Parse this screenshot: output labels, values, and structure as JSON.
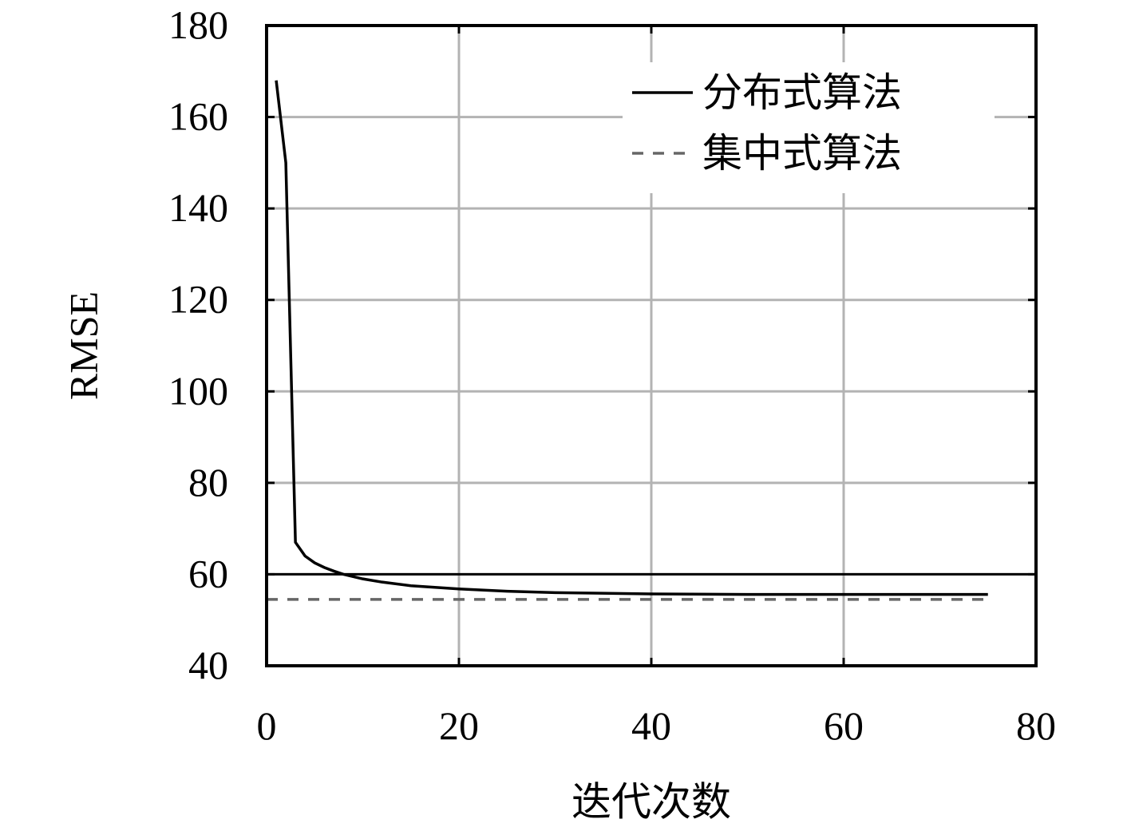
{
  "chart_data": {
    "type": "line",
    "xlabel": "迭代次数",
    "ylabel": "RMSE",
    "xlim": [
      0,
      80
    ],
    "xticks": [
      0,
      20,
      40,
      60,
      80
    ],
    "ylim": [
      40,
      180
    ],
    "yticks": [
      40,
      60,
      80,
      100,
      120,
      140,
      160,
      180
    ],
    "grid": true,
    "legend": "upper right",
    "reference_lines": [
      60
    ],
    "series": [
      {
        "name": "分布式算法",
        "color": "#000000",
        "dash": false,
        "x": [
          1,
          2,
          3,
          4,
          5,
          6,
          7,
          8,
          10,
          12,
          15,
          20,
          25,
          30,
          40,
          50,
          60,
          75
        ],
        "values": [
          168,
          150,
          67,
          64,
          62.5,
          61.5,
          60.7,
          60,
          59,
          58.3,
          57.5,
          56.8,
          56.3,
          56,
          55.7,
          55.6,
          55.6,
          55.6
        ]
      },
      {
        "name": "集中式算法",
        "color": "#666666",
        "dash": true,
        "x": [
          0,
          75
        ],
        "values": [
          54.5,
          54.5
        ]
      }
    ]
  }
}
